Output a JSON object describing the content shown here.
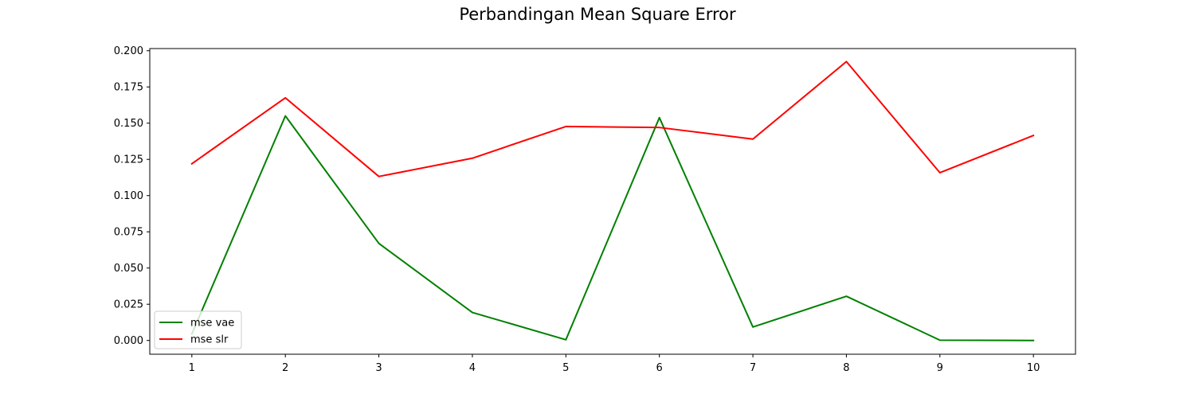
{
  "chart_data": {
    "type": "line",
    "title": "Perbandingan Mean Square Error",
    "xlabel": "",
    "ylabel": "",
    "x": [
      1,
      2,
      3,
      4,
      5,
      6,
      7,
      8,
      9,
      10
    ],
    "xlim": [
      0.55,
      10.45
    ],
    "ylim": [
      -0.0095,
      0.2015
    ],
    "yticks": [
      0.0,
      0.025,
      0.05,
      0.075,
      0.1,
      0.125,
      0.15,
      0.175,
      0.2
    ],
    "ytick_labels": [
      "0.000",
      "0.025",
      "0.050",
      "0.075",
      "0.100",
      "0.125",
      "0.150",
      "0.175",
      "0.200"
    ],
    "xtick_labels": [
      "1",
      "2",
      "3",
      "4",
      "5",
      "6",
      "7",
      "8",
      "9",
      "10"
    ],
    "grid": false,
    "legend_position": "lower-left",
    "series": [
      {
        "name": "mse vae",
        "color": "#008000",
        "values": [
          0.0045,
          0.155,
          0.067,
          0.0193,
          0.0005,
          0.1538,
          0.0093,
          0.0305,
          0.0002,
          0.0
        ]
      },
      {
        "name": "mse slr",
        "color": "#ff0000",
        "values": [
          0.122,
          0.1675,
          0.1132,
          0.1258,
          0.1477,
          0.147,
          0.139,
          0.1925,
          0.1158,
          0.1415
        ]
      }
    ]
  }
}
